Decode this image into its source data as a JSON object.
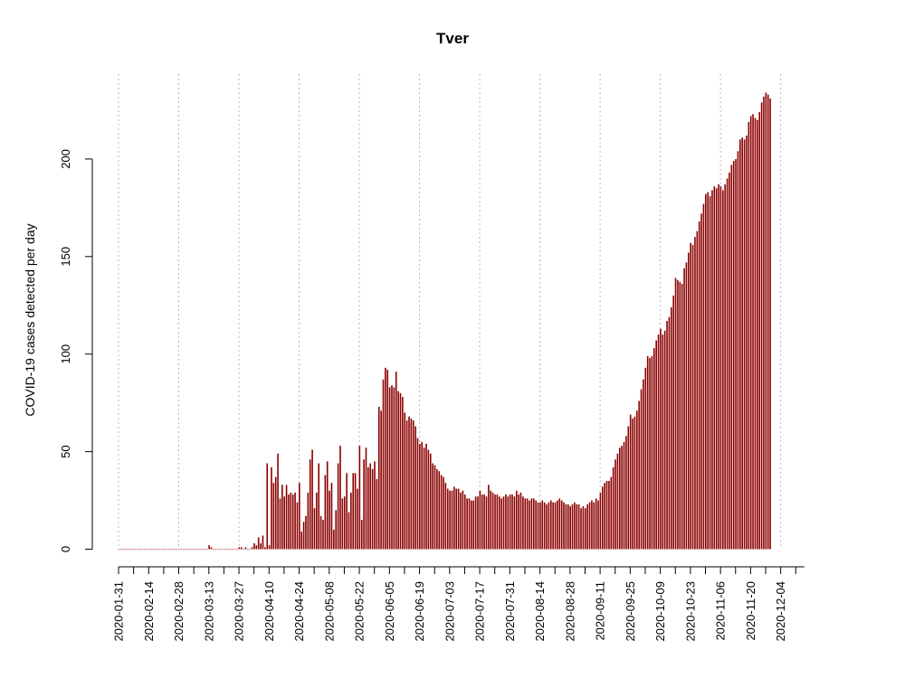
{
  "chart_data": {
    "type": "bar",
    "title": "Tver",
    "xlabel": "",
    "ylabel": "COVID-19 cases detected per day",
    "ylim": [
      0,
      232
    ],
    "xlim": [
      "2020-01-31",
      "2020-12-15"
    ],
    "yticks": [
      0,
      50,
      100,
      150,
      200
    ],
    "xticks": [
      "2020-01-31",
      "2020-02-14",
      "2020-02-28",
      "2020-03-13",
      "2020-03-27",
      "2020-04-10",
      "2020-04-24",
      "2020-05-08",
      "2020-05-22",
      "2020-06-05",
      "2020-06-19",
      "2020-07-03",
      "2020-07-17",
      "2020-07-31",
      "2020-08-14",
      "2020-08-28",
      "2020-09-11",
      "2020-09-25",
      "2020-10-09",
      "2020-10-23",
      "2020-11-06",
      "2020-11-20",
      "2020-12-04"
    ],
    "grid": "vertical dotted lines every 2 ticks",
    "bar_color": "#8b0000",
    "series": [
      {
        "start_date": "2020-01-31",
        "values": [
          0,
          0,
          0,
          0,
          0,
          0,
          0,
          0,
          0,
          0,
          0,
          0,
          0,
          0,
          0,
          0,
          0,
          0,
          0,
          0,
          0,
          0,
          0,
          0,
          0,
          0,
          0,
          0,
          0,
          0,
          0,
          0,
          0,
          0,
          0,
          0,
          0,
          0,
          0,
          0,
          0,
          0,
          2,
          1,
          0,
          0,
          0,
          0,
          0,
          0,
          0,
          0,
          0,
          0,
          0,
          0,
          1,
          1,
          0,
          1,
          0,
          0,
          1,
          3,
          2,
          6,
          3,
          7,
          1,
          44,
          2,
          42,
          34,
          37,
          49,
          26,
          33,
          27,
          33,
          28,
          29,
          28,
          29,
          24,
          34,
          9,
          14,
          17,
          29,
          46,
          51,
          21,
          29,
          44,
          17,
          15,
          38,
          45,
          30,
          34,
          10,
          20,
          44,
          53,
          26,
          27,
          39,
          19,
          29,
          39,
          39,
          31,
          53,
          15,
          46,
          52,
          42,
          44,
          41,
          45,
          36,
          73,
          71,
          87,
          93,
          92,
          83,
          84,
          83,
          91,
          81,
          80,
          78,
          70,
          66,
          68,
          67,
          66,
          63,
          57,
          54,
          55,
          52,
          54,
          51,
          49,
          44,
          43,
          41,
          40,
          38,
          37,
          34,
          31,
          30,
          30,
          32,
          31,
          31,
          29,
          30,
          28,
          26,
          26,
          25,
          25,
          27,
          27,
          30,
          28,
          28,
          27,
          33,
          30,
          29,
          28,
          28,
          27,
          26,
          27,
          28,
          27,
          28,
          28,
          27,
          30,
          28,
          29,
          27,
          26,
          26,
          25,
          26,
          26,
          25,
          24,
          24,
          25,
          24,
          23,
          24,
          25,
          24,
          24,
          25,
          26,
          25,
          24,
          23,
          23,
          22,
          23,
          24,
          23,
          23,
          21,
          22,
          21,
          23,
          24,
          25,
          24,
          26,
          25,
          29,
          32,
          34,
          35,
          35,
          37,
          42,
          46,
          49,
          52,
          53,
          55,
          58,
          63,
          69,
          67,
          68,
          71,
          76,
          82,
          87,
          93,
          99,
          98,
          99,
          103,
          107,
          110,
          113,
          110,
          112,
          117,
          119,
          124,
          130,
          139,
          138,
          137,
          136,
          144,
          147,
          152,
          157,
          156,
          160,
          163,
          168,
          172,
          177,
          182,
          183,
          181,
          184,
          186,
          185,
          187,
          186,
          184,
          187,
          190,
          193,
          197,
          199,
          200,
          204,
          210,
          211,
          210,
          212,
          219,
          222,
          223,
          221,
          220,
          224,
          229,
          232,
          234,
          233,
          231
        ]
      }
    ]
  }
}
